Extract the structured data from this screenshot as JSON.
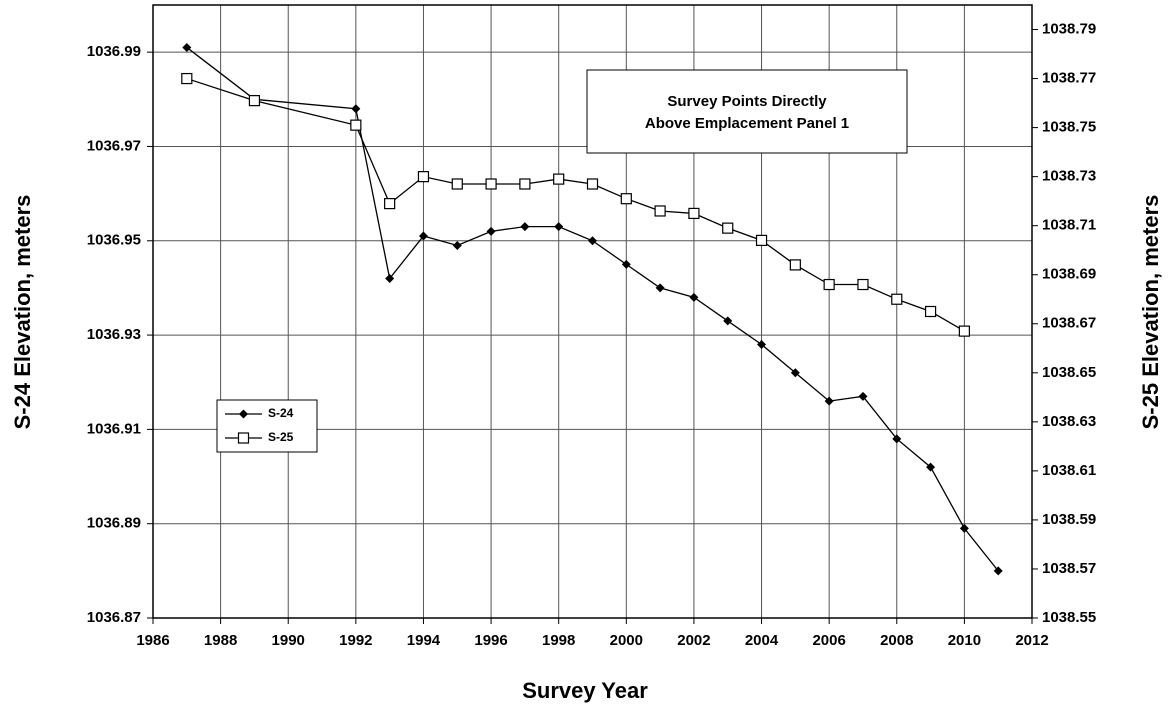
{
  "chart_data": {
    "type": "line",
    "annotation": [
      "Survey Points Directly",
      "Above Emplacement Panel 1"
    ],
    "xlabel": "Survey Year",
    "ylabel": "S-24 Elevation, meters",
    "y2label": "S-25 Elevation, meters",
    "xlim": [
      1986,
      2012
    ],
    "xticks": [
      1986,
      1988,
      1990,
      1992,
      1994,
      1996,
      1998,
      2000,
      2002,
      2004,
      2006,
      2008,
      2010,
      2012
    ],
    "ylim": [
      1036.87,
      1037.0
    ],
    "yticks": [
      1036.87,
      1036.89,
      1036.91,
      1036.93,
      1036.95,
      1036.97,
      1036.99
    ],
    "y2lim": [
      1038.55,
      1038.8
    ],
    "y2ticks": [
      1038.55,
      1038.57,
      1038.59,
      1038.61,
      1038.63,
      1038.65,
      1038.67,
      1038.69,
      1038.71,
      1038.73,
      1038.75,
      1038.77,
      1038.79
    ],
    "grid": true,
    "series": [
      {
        "name": "S-24",
        "color": "#000000",
        "marker": "diamond",
        "x": [
          1987,
          1989,
          1992,
          1993,
          1994,
          1995,
          1996,
          1997,
          1998,
          1999,
          2000,
          2001,
          2002,
          2003,
          2004,
          2005,
          2006,
          2007,
          2008,
          2009,
          2010,
          2011
        ],
        "values": [
          1036.991,
          1036.98,
          1036.978,
          1036.942,
          1036.951,
          1036.949,
          1036.952,
          1036.953,
          1036.953,
          1036.95,
          1036.945,
          1036.94,
          1036.938,
          1036.933,
          1036.928,
          1036.922,
          1036.916,
          1036.917,
          1036.908,
          1036.902,
          1036.889,
          1036.88
        ]
      },
      {
        "name": "S-25",
        "color": "#000000",
        "marker": "square",
        "axis": "y2",
        "x": [
          1987,
          1989,
          1992,
          1993,
          1994,
          1995,
          1996,
          1997,
          1998,
          1999,
          2000,
          2001,
          2002,
          2003,
          2004,
          2005,
          2006,
          2007,
          2008,
          2009,
          2010
        ],
        "values": [
          1038.77,
          1038.761,
          1038.751,
          1038.719,
          1038.73,
          1038.727,
          1038.727,
          1038.727,
          1038.729,
          1038.727,
          1038.721,
          1038.716,
          1038.715,
          1038.709,
          1038.704,
          1038.694,
          1038.686,
          1038.686,
          1038.68,
          1038.675,
          1038.667
        ]
      }
    ]
  }
}
